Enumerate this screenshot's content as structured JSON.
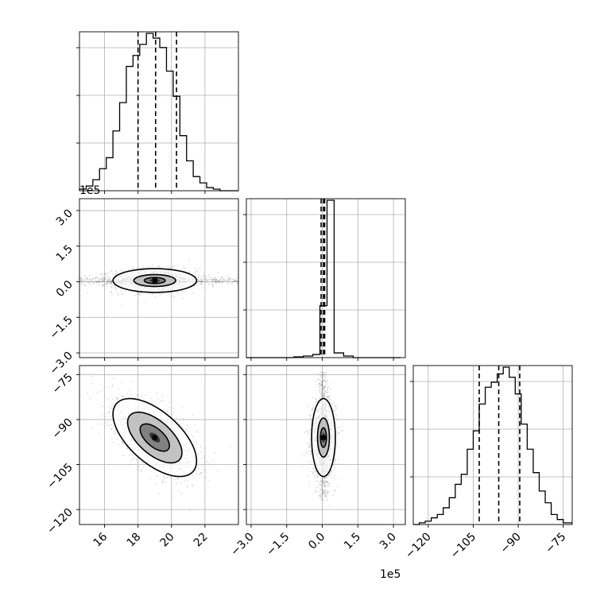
{
  "chart_data": {
    "type": "corner",
    "figure_size_px": 760,
    "offset_labels": [
      "1e5",
      "1e5"
    ],
    "parameters": [
      {
        "id": "p0",
        "range": [
          14.5,
          24.0
        ],
        "ticks": [
          16,
          18,
          20,
          22
        ],
        "tick_labels": [
          "16",
          "18",
          "20",
          "22"
        ],
        "median": 19.05,
        "quantiles": [
          18.0,
          20.3
        ],
        "hist_edges": [
          14.5,
          14.9,
          15.3,
          15.7,
          16.1,
          16.5,
          16.9,
          17.3,
          17.7,
          18.1,
          18.5,
          18.9,
          19.3,
          19.7,
          20.1,
          20.5,
          20.9,
          21.3,
          21.7,
          22.1,
          22.5,
          22.9,
          23.3,
          23.7,
          24.0
        ],
        "hist_counts": [
          0.01,
          0.03,
          0.07,
          0.14,
          0.21,
          0.38,
          0.56,
          0.79,
          0.86,
          0.93,
          1.0,
          0.97,
          0.91,
          0.76,
          0.6,
          0.35,
          0.19,
          0.09,
          0.05,
          0.02,
          0.01,
          0,
          0,
          0
        ]
      },
      {
        "id": "p1",
        "range": [
          -3.2,
          3.5
        ],
        "ticks": [
          -3.0,
          -1.5,
          0.0,
          1.5,
          3.0
        ],
        "tick_labels": [
          "−3.0",
          "−1.5",
          "0.0",
          "1.5",
          "3.0"
        ],
        "median": 0.05,
        "quantiles": [
          -0.05,
          0.1
        ],
        "hist_edges": [
          -3.2,
          -2.8,
          -2.4,
          -2.0,
          -1.6,
          -1.2,
          -0.8,
          -0.4,
          -0.1,
          0.2,
          0.5,
          0.9,
          1.3,
          1.7,
          2.1,
          2.5,
          2.9,
          3.3
        ],
        "hist_counts": [
          0,
          0,
          0,
          0,
          0,
          0.005,
          0.01,
          0.02,
          0.33,
          1.0,
          0.03,
          0.01,
          0,
          0,
          0,
          0,
          0
        ]
      },
      {
        "id": "p2",
        "range": [
          -125,
          -72
        ],
        "ticks": [
          -120,
          -105,
          -90,
          -75
        ],
        "tick_labels": [
          "−120",
          "−105",
          "−90",
          "−75"
        ],
        "median": -96.5,
        "quantiles": [
          -103.0,
          -89.5
        ],
        "hist_edges": [
          -125,
          -123,
          -121,
          -119,
          -117,
          -115,
          -113,
          -111,
          -109,
          -107,
          -105,
          -103,
          -101,
          -99,
          -97,
          -95,
          -93,
          -91,
          -89,
          -87,
          -85,
          -83,
          -81,
          -79,
          -77,
          -75,
          -72
        ],
        "hist_counts": [
          0,
          0.01,
          0.02,
          0.04,
          0.06,
          0.1,
          0.16,
          0.24,
          0.3,
          0.45,
          0.56,
          0.72,
          0.82,
          0.85,
          0.9,
          0.94,
          0.88,
          0.78,
          0.6,
          0.45,
          0.31,
          0.2,
          0.13,
          0.06,
          0.03,
          0.01
        ]
      }
    ],
    "pairs": [
      {
        "x": "p0",
        "y": "p1",
        "mean": [
          19.0,
          0.05
        ],
        "sd": [
          1.25,
          0.25
        ],
        "rho": 0.0,
        "contour_sigmas": [
          2.0,
          1.0,
          0.5
        ]
      },
      {
        "x": "p0",
        "y": "p2",
        "mean": [
          19.0,
          -96.0
        ],
        "sd": [
          1.25,
          6.5
        ],
        "rho": -0.6,
        "contour_sigmas": [
          2.0,
          1.3,
          0.7
        ]
      },
      {
        "x": "p1",
        "y": "p2",
        "mean": [
          0.05,
          -96.0
        ],
        "sd": [
          0.25,
          6.5
        ],
        "rho": 0.0,
        "contour_sigmas": [
          2.0,
          1.0,
          0.5
        ]
      }
    ]
  }
}
